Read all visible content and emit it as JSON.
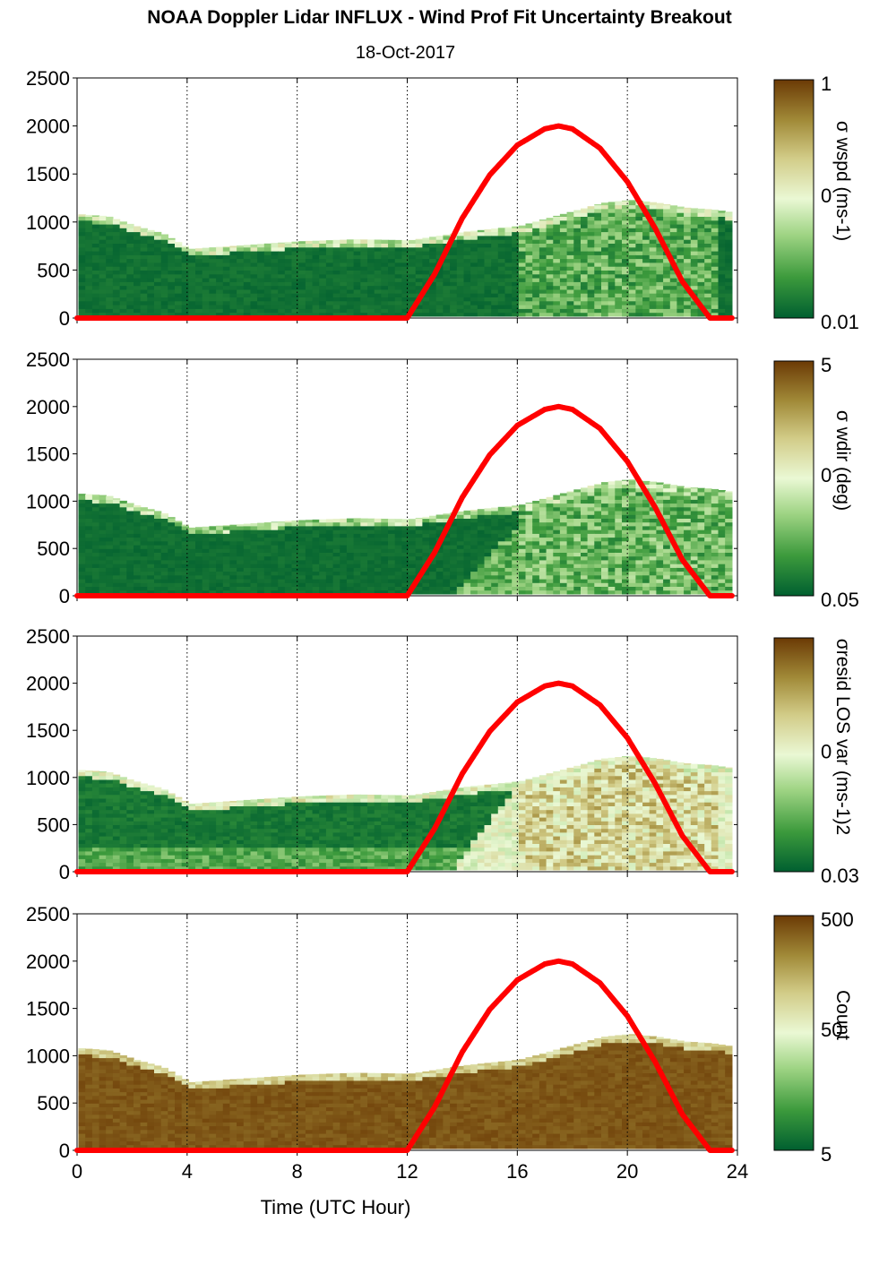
{
  "title": "NOAA Doppler Lidar INFLUX - Wind Prof Fit Uncertainty Breakout",
  "subtitle": "18-Oct-2017",
  "colors": {
    "sun_curve": "#ff0000",
    "colormap": [
      "#005f30",
      "#3c9a3c",
      "#9fd484",
      "#eaf8d4",
      "#d2cc88",
      "#a18a38",
      "#6b3a05"
    ]
  },
  "chart_data": [
    {
      "type": "heatmap",
      "name": "wspd-uncertainty",
      "xlim": [
        0,
        24
      ],
      "ylim": [
        0,
        2500
      ],
      "xticks": [
        0,
        4,
        8,
        12,
        16,
        20,
        24
      ],
      "yticks": [
        0,
        500,
        1000,
        1500,
        2000,
        2500
      ],
      "ytick_labels": [
        "0",
        "500",
        "1000",
        "1500",
        "2000",
        "2500"
      ],
      "vertical_gridlines": [
        4,
        8,
        12,
        16,
        20,
        24
      ],
      "colorbar": {
        "label": "σ wspd (ms-1)",
        "tick_labels": [
          "1",
          "0",
          "0.01"
        ],
        "top": "1",
        "mid": "0",
        "bottom": "0.01"
      },
      "curve": {
        "x": [
          0,
          12,
          13,
          14,
          15,
          16,
          17,
          17.5,
          18,
          19,
          20,
          21,
          22,
          23,
          23.8
        ],
        "y": [
          0,
          0,
          460,
          1040,
          1490,
          1800,
          1970,
          2000,
          1970,
          1770,
          1420,
          940,
          380,
          0,
          0
        ]
      },
      "echo_top": {
        "x": [
          0,
          1,
          2,
          3,
          4,
          5,
          6,
          8,
          10,
          12,
          14,
          16,
          17,
          18,
          19,
          20,
          21,
          22,
          23,
          23.7
        ],
        "y": [
          1080,
          1060,
          960,
          880,
          720,
          740,
          760,
          800,
          820,
          810,
          900,
          960,
          1040,
          1120,
          1200,
          1230,
          1200,
          1150,
          1130,
          1100
        ]
      }
    },
    {
      "type": "heatmap",
      "name": "wdir-uncertainty",
      "xlim": [
        0,
        24
      ],
      "ylim": [
        0,
        2500
      ],
      "xticks": [
        0,
        4,
        8,
        12,
        16,
        20,
        24
      ],
      "yticks": [
        0,
        500,
        1000,
        1500,
        2000,
        2500
      ],
      "ytick_labels": [
        "0",
        "500",
        "1000",
        "1500",
        "2000",
        "2500"
      ],
      "vertical_gridlines": [
        4,
        8,
        12,
        16,
        20,
        24
      ],
      "colorbar": {
        "label": "σ wdir (deg)",
        "tick_labels": [
          "5",
          "0",
          "0.05"
        ],
        "top": "5",
        "mid": "0",
        "bottom": "0.05"
      },
      "curve": {
        "x": [
          0,
          12,
          13,
          14,
          15,
          16,
          17,
          17.5,
          18,
          19,
          20,
          21,
          22,
          23,
          23.8
        ],
        "y": [
          0,
          0,
          460,
          1040,
          1490,
          1800,
          1970,
          2000,
          1970,
          1770,
          1420,
          940,
          380,
          0,
          0
        ]
      },
      "echo_top": {
        "x": [
          0,
          1,
          2,
          3,
          4,
          5,
          6,
          8,
          10,
          12,
          14,
          16,
          17,
          18,
          19,
          20,
          21,
          22,
          23,
          23.7
        ],
        "y": [
          1080,
          1060,
          960,
          880,
          720,
          740,
          760,
          800,
          820,
          810,
          900,
          960,
          1040,
          1120,
          1200,
          1230,
          1200,
          1150,
          1130,
          1100
        ]
      }
    },
    {
      "type": "heatmap",
      "name": "resid-los-var",
      "xlim": [
        0,
        24
      ],
      "ylim": [
        0,
        2500
      ],
      "xticks": [
        0,
        4,
        8,
        12,
        16,
        20,
        24
      ],
      "yticks": [
        0,
        500,
        1000,
        1500,
        2000,
        2500
      ],
      "ytick_labels": [
        "0",
        "500",
        "1000",
        "1500",
        "2000",
        "2500"
      ],
      "vertical_gridlines": [
        4,
        8,
        12,
        16,
        20,
        24
      ],
      "colorbar": {
        "label": "σresid LOS var (ms-1)2",
        "tick_labels": [
          "0",
          "0.03"
        ],
        "top": "",
        "mid": "0",
        "bottom": "0.03"
      },
      "curve": {
        "x": [
          0,
          12,
          13,
          14,
          15,
          16,
          17,
          17.5,
          18,
          19,
          20,
          21,
          22,
          23,
          23.8
        ],
        "y": [
          0,
          0,
          460,
          1040,
          1490,
          1800,
          1970,
          2000,
          1970,
          1770,
          1420,
          940,
          380,
          0,
          0
        ]
      },
      "echo_top": {
        "x": [
          0,
          1,
          2,
          3,
          4,
          5,
          6,
          8,
          10,
          12,
          14,
          16,
          17,
          18,
          19,
          20,
          21,
          22,
          23,
          23.7
        ],
        "y": [
          1080,
          1060,
          960,
          880,
          720,
          740,
          760,
          800,
          820,
          810,
          900,
          960,
          1040,
          1120,
          1200,
          1230,
          1200,
          1150,
          1130,
          1100
        ]
      }
    },
    {
      "type": "heatmap",
      "name": "count",
      "xlim": [
        0,
        24
      ],
      "ylim": [
        0,
        2500
      ],
      "xticks": [
        0,
        4,
        8,
        12,
        16,
        20,
        24
      ],
      "yticks": [
        0,
        500,
        1000,
        1500,
        2000,
        2500
      ],
      "ytick_labels": [
        "0",
        "500",
        "1000",
        "1500",
        "2000",
        "2500"
      ],
      "vertical_gridlines": [
        4,
        8,
        12,
        16,
        20,
        24
      ],
      "xlabel": "Time (UTC Hour)",
      "xtick_labels": [
        "0",
        "4",
        "8",
        "12",
        "16",
        "20",
        "24"
      ],
      "colorbar": {
        "label": "Count",
        "tick_labels": [
          "500",
          "50",
          "5"
        ],
        "top": "500",
        "mid": "50",
        "bottom": "5"
      },
      "curve": {
        "x": [
          0,
          12,
          13,
          14,
          15,
          16,
          17,
          17.5,
          18,
          19,
          20,
          21,
          22,
          23,
          23.8
        ],
        "y": [
          0,
          0,
          460,
          1040,
          1490,
          1800,
          1970,
          2000,
          1970,
          1770,
          1420,
          940,
          380,
          0,
          0
        ]
      },
      "echo_top": {
        "x": [
          0,
          1,
          2,
          3,
          4,
          5,
          6,
          8,
          10,
          12,
          14,
          16,
          17,
          18,
          19,
          20,
          21,
          22,
          23,
          23.7
        ],
        "y": [
          1080,
          1060,
          960,
          880,
          720,
          740,
          760,
          800,
          820,
          810,
          900,
          960,
          1040,
          1120,
          1200,
          1230,
          1200,
          1150,
          1130,
          1100
        ]
      }
    }
  ]
}
